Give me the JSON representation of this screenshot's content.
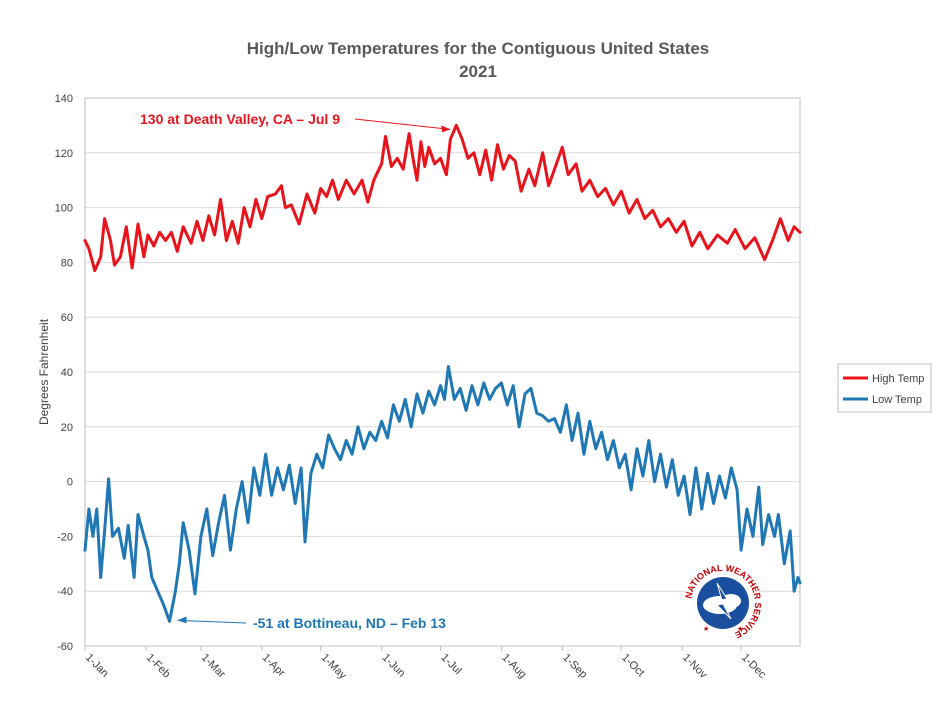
{
  "chart_data": {
    "type": "line",
    "title": "High/Low Temperatures for the Contiguous United States",
    "subtitle": "2021",
    "xlabel": "",
    "ylabel": "Degrees Fahrenheit",
    "ylim": [
      -60,
      140
    ],
    "yticks": [
      -60,
      -40,
      -20,
      0,
      20,
      40,
      60,
      80,
      100,
      120,
      140
    ],
    "xlim": [
      "2021-01-01",
      "2021-12-31"
    ],
    "xticks": [
      {
        "label": "1-Jan",
        "date": "2021-01-01"
      },
      {
        "label": "1-Feb",
        "date": "2021-02-01"
      },
      {
        "label": "1-Mar",
        "date": "2021-03-01"
      },
      {
        "label": "1-Apr",
        "date": "2021-04-01"
      },
      {
        "label": "1-May",
        "date": "2021-05-01"
      },
      {
        "label": "1-Jun",
        "date": "2021-06-01"
      },
      {
        "label": "1-Jul",
        "date": "2021-07-01"
      },
      {
        "label": "1-Aug",
        "date": "2021-08-01"
      },
      {
        "label": "1-Sep",
        "date": "2021-09-01"
      },
      {
        "label": "1-Oct",
        "date": "2021-10-01"
      },
      {
        "label": "1-Nov",
        "date": "2021-11-01"
      },
      {
        "label": "1-Dec",
        "date": "2021-12-01"
      }
    ],
    "grid": true,
    "legend_position": "right",
    "series": [
      {
        "name": "High Temp",
        "color": "#e8141c",
        "points": [
          [
            "2021-01-01",
            88
          ],
          [
            "2021-01-03",
            85
          ],
          [
            "2021-01-06",
            77
          ],
          [
            "2021-01-09",
            82
          ],
          [
            "2021-01-11",
            96
          ],
          [
            "2021-01-14",
            88
          ],
          [
            "2021-01-16",
            79
          ],
          [
            "2021-01-19",
            82
          ],
          [
            "2021-01-22",
            93
          ],
          [
            "2021-01-25",
            78
          ],
          [
            "2021-01-28",
            94
          ],
          [
            "2021-01-31",
            82
          ],
          [
            "2021-02-02",
            90
          ],
          [
            "2021-02-05",
            86
          ],
          [
            "2021-02-08",
            91
          ],
          [
            "2021-02-11",
            88
          ],
          [
            "2021-02-14",
            91
          ],
          [
            "2021-02-17",
            84
          ],
          [
            "2021-02-20",
            93
          ],
          [
            "2021-02-24",
            87
          ],
          [
            "2021-02-27",
            95
          ],
          [
            "2021-03-02",
            88
          ],
          [
            "2021-03-05",
            97
          ],
          [
            "2021-03-08",
            90
          ],
          [
            "2021-03-11",
            103
          ],
          [
            "2021-03-14",
            88
          ],
          [
            "2021-03-17",
            95
          ],
          [
            "2021-03-20",
            87
          ],
          [
            "2021-03-23",
            100
          ],
          [
            "2021-03-26",
            93
          ],
          [
            "2021-03-29",
            103
          ],
          [
            "2021-04-01",
            96
          ],
          [
            "2021-04-04",
            104
          ],
          [
            "2021-04-08",
            105
          ],
          [
            "2021-04-11",
            108
          ],
          [
            "2021-04-13",
            100
          ],
          [
            "2021-04-16",
            101
          ],
          [
            "2021-04-20",
            94
          ],
          [
            "2021-04-24",
            105
          ],
          [
            "2021-04-28",
            98
          ],
          [
            "2021-05-01",
            107
          ],
          [
            "2021-05-04",
            104
          ],
          [
            "2021-05-07",
            110
          ],
          [
            "2021-05-10",
            103
          ],
          [
            "2021-05-14",
            110
          ],
          [
            "2021-05-18",
            105
          ],
          [
            "2021-05-22",
            110
          ],
          [
            "2021-05-25",
            102
          ],
          [
            "2021-05-28",
            110
          ],
          [
            "2021-06-01",
            116
          ],
          [
            "2021-06-03",
            126
          ],
          [
            "2021-06-06",
            115
          ],
          [
            "2021-06-09",
            118
          ],
          [
            "2021-06-12",
            114
          ],
          [
            "2021-06-15",
            127
          ],
          [
            "2021-06-17",
            118
          ],
          [
            "2021-06-19",
            110
          ],
          [
            "2021-06-21",
            124
          ],
          [
            "2021-06-23",
            115
          ],
          [
            "2021-06-25",
            122
          ],
          [
            "2021-06-28",
            116
          ],
          [
            "2021-07-01",
            118
          ],
          [
            "2021-07-04",
            112
          ],
          [
            "2021-07-06",
            125
          ],
          [
            "2021-07-09",
            130
          ],
          [
            "2021-07-12",
            125
          ],
          [
            "2021-07-15",
            118
          ],
          [
            "2021-07-18",
            120
          ],
          [
            "2021-07-21",
            112
          ],
          [
            "2021-07-24",
            121
          ],
          [
            "2021-07-27",
            110
          ],
          [
            "2021-07-30",
            123
          ],
          [
            "2021-08-02",
            114
          ],
          [
            "2021-08-05",
            119
          ],
          [
            "2021-08-08",
            117
          ],
          [
            "2021-08-11",
            106
          ],
          [
            "2021-08-15",
            114
          ],
          [
            "2021-08-18",
            108
          ],
          [
            "2021-08-22",
            120
          ],
          [
            "2021-08-25",
            108
          ],
          [
            "2021-08-28",
            114
          ],
          [
            "2021-09-01",
            122
          ],
          [
            "2021-09-04",
            112
          ],
          [
            "2021-09-08",
            116
          ],
          [
            "2021-09-11",
            106
          ],
          [
            "2021-09-15",
            110
          ],
          [
            "2021-09-19",
            104
          ],
          [
            "2021-09-23",
            107
          ],
          [
            "2021-09-27",
            101
          ],
          [
            "2021-10-01",
            106
          ],
          [
            "2021-10-05",
            98
          ],
          [
            "2021-10-09",
            103
          ],
          [
            "2021-10-13",
            96
          ],
          [
            "2021-10-17",
            99
          ],
          [
            "2021-10-21",
            93
          ],
          [
            "2021-10-25",
            96
          ],
          [
            "2021-10-29",
            91
          ],
          [
            "2021-11-02",
            95
          ],
          [
            "2021-11-06",
            86
          ],
          [
            "2021-11-10",
            91
          ],
          [
            "2021-11-14",
            85
          ],
          [
            "2021-11-19",
            90
          ],
          [
            "2021-11-24",
            87
          ],
          [
            "2021-11-28",
            92
          ],
          [
            "2021-12-03",
            85
          ],
          [
            "2021-12-08",
            89
          ],
          [
            "2021-12-13",
            81
          ],
          [
            "2021-12-17",
            88
          ],
          [
            "2021-12-21",
            96
          ],
          [
            "2021-12-25",
            88
          ],
          [
            "2021-12-28",
            93
          ],
          [
            "2021-12-31",
            91
          ]
        ]
      },
      {
        "name": "Low Temp",
        "color": "#1f77b4",
        "points": [
          [
            "2021-01-01",
            -25
          ],
          [
            "2021-01-03",
            -10
          ],
          [
            "2021-01-05",
            -20
          ],
          [
            "2021-01-07",
            -10
          ],
          [
            "2021-01-09",
            -35
          ],
          [
            "2021-01-11",
            -18
          ],
          [
            "2021-01-13",
            1
          ],
          [
            "2021-01-15",
            -20
          ],
          [
            "2021-01-18",
            -17
          ],
          [
            "2021-01-21",
            -28
          ],
          [
            "2021-01-23",
            -16
          ],
          [
            "2021-01-26",
            -35
          ],
          [
            "2021-01-28",
            -12
          ],
          [
            "2021-01-31",
            -20
          ],
          [
            "2021-02-02",
            -25
          ],
          [
            "2021-02-04",
            -35
          ],
          [
            "2021-02-07",
            -40
          ],
          [
            "2021-02-10",
            -45
          ],
          [
            "2021-02-13",
            -51
          ],
          [
            "2021-02-16",
            -40
          ],
          [
            "2021-02-18",
            -30
          ],
          [
            "2021-02-20",
            -15
          ],
          [
            "2021-02-23",
            -25
          ],
          [
            "2021-02-26",
            -41
          ],
          [
            "2021-03-01",
            -20
          ],
          [
            "2021-03-04",
            -10
          ],
          [
            "2021-03-07",
            -27
          ],
          [
            "2021-03-10",
            -15
          ],
          [
            "2021-03-13",
            -5
          ],
          [
            "2021-03-16",
            -25
          ],
          [
            "2021-03-19",
            -10
          ],
          [
            "2021-03-22",
            0
          ],
          [
            "2021-03-25",
            -15
          ],
          [
            "2021-03-28",
            5
          ],
          [
            "2021-03-31",
            -5
          ],
          [
            "2021-04-03",
            10
          ],
          [
            "2021-04-06",
            -5
          ],
          [
            "2021-04-09",
            5
          ],
          [
            "2021-04-12",
            -3
          ],
          [
            "2021-04-15",
            6
          ],
          [
            "2021-04-18",
            -8
          ],
          [
            "2021-04-21",
            5
          ],
          [
            "2021-04-23",
            -22
          ],
          [
            "2021-04-26",
            3
          ],
          [
            "2021-04-29",
            10
          ],
          [
            "2021-05-02",
            5
          ],
          [
            "2021-05-05",
            17
          ],
          [
            "2021-05-08",
            12
          ],
          [
            "2021-05-11",
            8
          ],
          [
            "2021-05-14",
            15
          ],
          [
            "2021-05-17",
            10
          ],
          [
            "2021-05-20",
            20
          ],
          [
            "2021-05-23",
            12
          ],
          [
            "2021-05-26",
            18
          ],
          [
            "2021-05-29",
            15
          ],
          [
            "2021-06-01",
            22
          ],
          [
            "2021-06-04",
            16
          ],
          [
            "2021-06-07",
            28
          ],
          [
            "2021-06-10",
            22
          ],
          [
            "2021-06-13",
            30
          ],
          [
            "2021-06-16",
            20
          ],
          [
            "2021-06-19",
            32
          ],
          [
            "2021-06-22",
            25
          ],
          [
            "2021-06-25",
            33
          ],
          [
            "2021-06-28",
            28
          ],
          [
            "2021-07-01",
            35
          ],
          [
            "2021-07-03",
            30
          ],
          [
            "2021-07-05",
            42
          ],
          [
            "2021-07-08",
            30
          ],
          [
            "2021-07-11",
            34
          ],
          [
            "2021-07-14",
            26
          ],
          [
            "2021-07-17",
            35
          ],
          [
            "2021-07-20",
            28
          ],
          [
            "2021-07-23",
            36
          ],
          [
            "2021-07-26",
            30
          ],
          [
            "2021-07-29",
            34
          ],
          [
            "2021-08-01",
            36
          ],
          [
            "2021-08-04",
            28
          ],
          [
            "2021-08-07",
            35
          ],
          [
            "2021-08-10",
            20
          ],
          [
            "2021-08-13",
            32
          ],
          [
            "2021-08-16",
            34
          ],
          [
            "2021-08-19",
            25
          ],
          [
            "2021-08-22",
            24
          ],
          [
            "2021-08-25",
            22
          ],
          [
            "2021-08-28",
            23
          ],
          [
            "2021-08-31",
            18
          ],
          [
            "2021-09-03",
            28
          ],
          [
            "2021-09-06",
            15
          ],
          [
            "2021-09-09",
            25
          ],
          [
            "2021-09-12",
            10
          ],
          [
            "2021-09-15",
            22
          ],
          [
            "2021-09-18",
            12
          ],
          [
            "2021-09-21",
            18
          ],
          [
            "2021-09-24",
            8
          ],
          [
            "2021-09-27",
            15
          ],
          [
            "2021-09-30",
            5
          ],
          [
            "2021-10-03",
            10
          ],
          [
            "2021-10-06",
            -3
          ],
          [
            "2021-10-09",
            12
          ],
          [
            "2021-10-12",
            2
          ],
          [
            "2021-10-15",
            15
          ],
          [
            "2021-10-18",
            0
          ],
          [
            "2021-10-21",
            10
          ],
          [
            "2021-10-24",
            -2
          ],
          [
            "2021-10-27",
            8
          ],
          [
            "2021-10-30",
            -5
          ],
          [
            "2021-11-02",
            2
          ],
          [
            "2021-11-05",
            -12
          ],
          [
            "2021-11-08",
            5
          ],
          [
            "2021-11-11",
            -10
          ],
          [
            "2021-11-14",
            3
          ],
          [
            "2021-11-17",
            -8
          ],
          [
            "2021-11-20",
            2
          ],
          [
            "2021-11-23",
            -6
          ],
          [
            "2021-11-26",
            5
          ],
          [
            "2021-11-29",
            -3
          ],
          [
            "2021-12-01",
            -25
          ],
          [
            "2021-12-04",
            -10
          ],
          [
            "2021-12-07",
            -20
          ],
          [
            "2021-12-10",
            -2
          ],
          [
            "2021-12-12",
            -23
          ],
          [
            "2021-12-15",
            -12
          ],
          [
            "2021-12-18",
            -20
          ],
          [
            "2021-12-20",
            -12
          ],
          [
            "2021-12-23",
            -30
          ],
          [
            "2021-12-26",
            -18
          ],
          [
            "2021-12-28",
            -40
          ],
          [
            "2021-12-30",
            -35
          ],
          [
            "2021-12-31",
            -37
          ]
        ]
      }
    ],
    "annotations": [
      {
        "text": "130 at Death Valley, CA – Jul 9",
        "date": "2021-07-09",
        "value": 130,
        "color": "#e8141c"
      },
      {
        "text": "-51 at Bottineau, ND – Feb 13",
        "date": "2021-02-13",
        "value": -51,
        "color": "#1f77b4"
      }
    ]
  },
  "logo": {
    "text": "NATIONAL WEATHER SERVICE"
  }
}
